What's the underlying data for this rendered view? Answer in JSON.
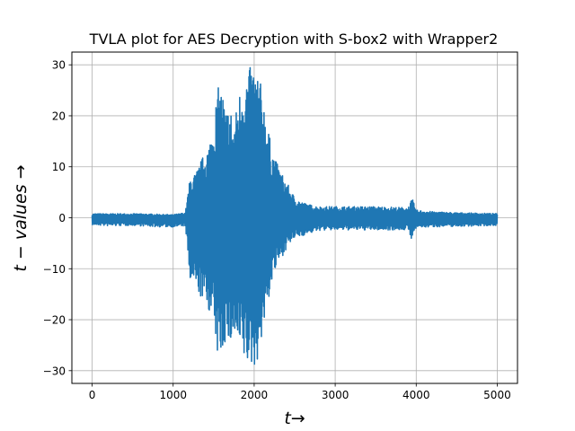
{
  "chart_data": {
    "type": "line",
    "title": "TVLA plot for AES Decryption with S-box2 with Wrapper2",
    "xlabel": "t→",
    "ylabel": "t − values →",
    "xlim": [
      -250,
      5250
    ],
    "ylim": [
      -32.5,
      32.5
    ],
    "xticks": [
      0,
      1000,
      2000,
      3000,
      4000,
      5000
    ],
    "yticks": [
      -30,
      -20,
      -10,
      0,
      10,
      20,
      30
    ],
    "grid": true,
    "legend": "none",
    "series": [
      {
        "color": "#1f77b4",
        "x_range": [
          0,
          5000
        ],
        "envelope": {
          "x": [
            0,
            200,
            500,
            800,
            1000,
            1150,
            1210,
            1260,
            1300,
            1350,
            1400,
            1450,
            1500,
            1550,
            1600,
            1650,
            1700,
            1750,
            1800,
            1850,
            1900,
            1950,
            2000,
            2050,
            2100,
            2150,
            2200,
            2250,
            2300,
            2350,
            2400,
            2450,
            2500,
            2600,
            2700,
            2800,
            3000,
            3500,
            3900,
            3950,
            4000,
            4200,
            4500,
            4800,
            5000
          ],
          "upper": [
            0.8,
            0.8,
            0.8,
            0.7,
            0.6,
            1.0,
            8.0,
            8.5,
            9.5,
            11.5,
            13.0,
            15.0,
            19.5,
            25.5,
            25.8,
            21.0,
            22.5,
            18.0,
            23.5,
            27.0,
            28.0,
            29.5,
            30.0,
            28.5,
            25.0,
            20.0,
            15.0,
            12.0,
            10.0,
            8.5,
            7.0,
            5.5,
            4.0,
            3.0,
            2.5,
            2.2,
            2.2,
            2.2,
            2.0,
            3.8,
            1.5,
            1.2,
            1.0,
            0.9,
            0.8
          ],
          "lower": [
            -1.4,
            -1.6,
            -1.5,
            -1.8,
            -1.8,
            -1.6,
            -13.0,
            -13.5,
            -14.5,
            -16.0,
            -17.0,
            -18.5,
            -21.5,
            -27.5,
            -27.0,
            -24.0,
            -25.5,
            -23.5,
            -26.5,
            -28.0,
            -29.0,
            -29.5,
            -29.5,
            -27.5,
            -23.0,
            -19.0,
            -14.0,
            -11.0,
            -9.0,
            -7.5,
            -6.0,
            -5.0,
            -4.0,
            -3.5,
            -3.0,
            -2.5,
            -2.4,
            -2.4,
            -2.4,
            -4.5,
            -2.0,
            -1.8,
            -1.7,
            -1.6,
            -1.5
          ]
        }
      }
    ]
  }
}
